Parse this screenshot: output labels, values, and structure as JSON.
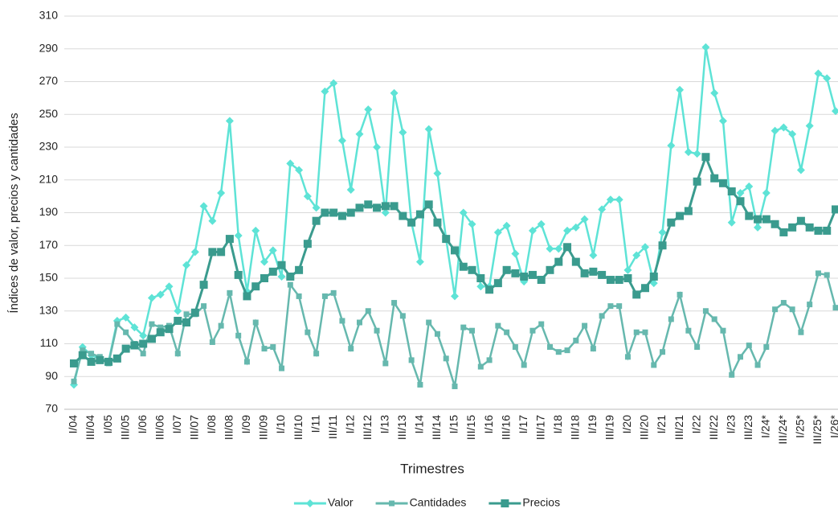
{
  "chart_data": {
    "type": "line",
    "x_label": "Trimestres",
    "y_label": "Índices de valor, precios y cantidades",
    "categories": [
      "I/04",
      null,
      "III/04",
      null,
      "I/05",
      null,
      "III/05",
      null,
      "I/06",
      null,
      "III/06",
      null,
      "I/07",
      null,
      "III/07",
      null,
      "I/08",
      null,
      "III/08",
      null,
      "I/09",
      null,
      "III/09",
      null,
      "I/10",
      null,
      "III/10",
      null,
      "I/11",
      null,
      "III/11",
      null,
      "I/12",
      null,
      "III/12",
      null,
      "I/13",
      null,
      "III/13",
      null,
      "I/14",
      null,
      "III/14",
      null,
      "I/15",
      null,
      "III/15",
      null,
      "I/16",
      null,
      "III/16",
      null,
      "I/17",
      null,
      "III/17",
      null,
      "I/18",
      null,
      "III/18",
      null,
      "I/19",
      null,
      "III/19",
      null,
      "I/20",
      null,
      "III/20",
      null,
      "I/21",
      null,
      "III/21",
      null,
      "I/22",
      null,
      "III/22",
      null,
      "I/23",
      null,
      "III/23",
      null,
      "I/24*",
      null,
      "III/24*",
      null,
      "I/25*",
      null,
      "III/25*",
      null,
      "I/26*"
    ],
    "series": [
      {
        "name": "Valor",
        "color": "#5ee3d6",
        "marker": "diamond",
        "values": [
          85,
          108,
          103,
          101,
          99,
          124,
          126,
          120,
          115,
          138,
          140,
          145,
          130,
          158,
          166,
          194,
          185,
          202,
          246,
          176,
          142,
          179,
          160,
          167,
          151,
          220,
          216,
          200,
          193,
          264,
          269,
          234,
          204,
          238,
          253,
          230,
          190,
          263,
          239,
          184,
          160,
          241,
          214,
          174,
          139,
          190,
          183,
          145,
          145,
          178,
          182,
          165,
          148,
          179,
          183,
          168,
          168,
          179,
          181,
          186,
          164,
          192,
          198,
          198,
          155,
          164,
          169,
          147,
          178,
          231,
          265,
          227,
          226,
          291,
          263,
          246,
          184,
          202,
          206,
          181,
          202,
          240,
          242,
          238,
          216,
          243,
          275,
          272,
          252
        ]
      },
      {
        "name": "Cantidades",
        "color": "#66b8ae",
        "marker": "square",
        "values": [
          87,
          106,
          104,
          102,
          98,
          122,
          117,
          110,
          104,
          122,
          120,
          121,
          104,
          128,
          128,
          133,
          111,
          121,
          141,
          115,
          99,
          123,
          107,
          108,
          95,
          146,
          139,
          117,
          104,
          139,
          141,
          124,
          107,
          123,
          130,
          118,
          98,
          135,
          127,
          100,
          85,
          123,
          116,
          101,
          84,
          120,
          118,
          96,
          100,
          121,
          117,
          108,
          97,
          118,
          122,
          108,
          105,
          106,
          112,
          121,
          107,
          127,
          133,
          133,
          102,
          117,
          117,
          97,
          105,
          125,
          140,
          118,
          108,
          130,
          125,
          118,
          91,
          102,
          109,
          97,
          108,
          131,
          135,
          131,
          117,
          134,
          153,
          152,
          132
        ]
      },
      {
        "name": "Precios",
        "color": "#3a9b8e",
        "marker": "bigsquare",
        "values": [
          98,
          103,
          99,
          100,
          99,
          101,
          107,
          109,
          110,
          113,
          117,
          119,
          124,
          123,
          129,
          146,
          166,
          166,
          174,
          152,
          139,
          145,
          150,
          154,
          158,
          151,
          155,
          171,
          185,
          190,
          190,
          188,
          190,
          193,
          195,
          193,
          194,
          194,
          188,
          184,
          189,
          195,
          184,
          174,
          167,
          157,
          155,
          150,
          143,
          147,
          155,
          153,
          151,
          152,
          149,
          155,
          160,
          169,
          160,
          153,
          154,
          152,
          149,
          149,
          150,
          140,
          144,
          151,
          170,
          184,
          188,
          191,
          209,
          224,
          211,
          208,
          203,
          197,
          188,
          186,
          186,
          183,
          178,
          181,
          185,
          181,
          179,
          179,
          192
        ]
      }
    ],
    "ylim": [
      70,
      310
    ],
    "yticks": [
      70,
      90,
      110,
      130,
      150,
      170,
      190,
      210,
      230,
      250,
      270,
      290,
      310
    ],
    "grid": true,
    "legend": "bottom"
  }
}
